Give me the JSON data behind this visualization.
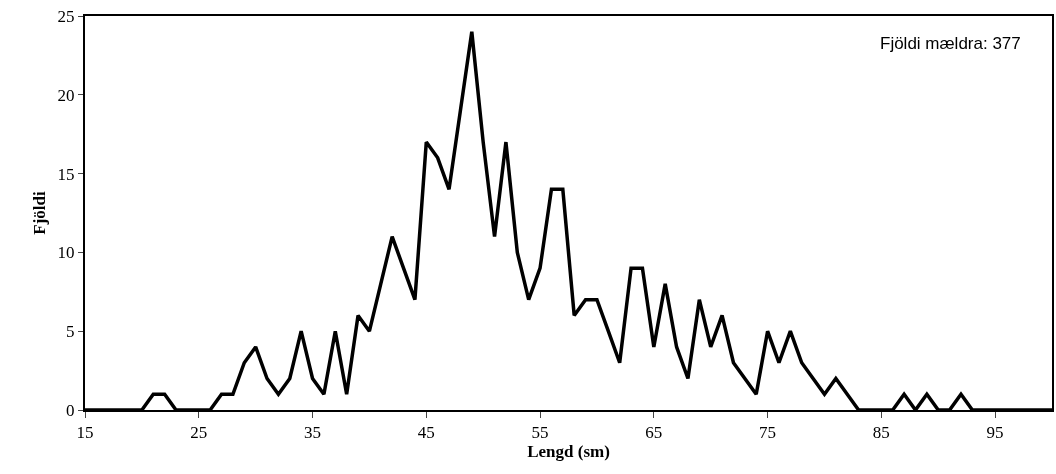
{
  "chart_data": {
    "type": "line",
    "xlabel": "Lengd (sm)",
    "ylabel": "Fjöldi",
    "annotations": [
      "Fjöldi mældra: 377"
    ],
    "x": [
      15,
      16,
      17,
      18,
      19,
      20,
      21,
      22,
      23,
      24,
      25,
      26,
      27,
      28,
      29,
      30,
      31,
      32,
      33,
      34,
      35,
      36,
      37,
      38,
      39,
      40,
      41,
      42,
      43,
      44,
      45,
      46,
      47,
      48,
      49,
      50,
      51,
      52,
      53,
      54,
      55,
      56,
      57,
      58,
      59,
      60,
      61,
      62,
      63,
      64,
      65,
      66,
      67,
      68,
      69,
      70,
      71,
      72,
      73,
      74,
      75,
      76,
      77,
      78,
      79,
      80,
      81,
      82,
      83,
      84,
      85,
      86,
      87,
      88,
      89,
      90,
      91,
      92,
      93,
      94,
      95,
      96,
      97,
      98,
      99,
      100
    ],
    "series": [
      {
        "color": "#000000",
        "values": [
          0,
          0,
          0,
          0,
          0,
          0,
          1,
          1,
          0,
          0,
          0,
          0,
          1,
          1,
          3,
          4,
          2,
          1,
          2,
          5,
          2,
          1,
          5,
          1,
          6,
          5,
          8,
          11,
          9,
          7,
          17,
          16,
          14,
          19,
          24,
          17,
          11,
          17,
          10,
          7,
          9,
          14,
          14,
          6,
          7,
          7,
          5,
          3,
          9,
          9,
          4,
          8,
          4,
          2,
          7,
          4,
          6,
          3,
          2,
          1,
          5,
          3,
          5,
          3,
          2,
          1,
          2,
          1,
          0,
          0,
          0,
          0,
          1,
          0,
          1,
          0,
          0,
          1,
          0,
          0,
          0,
          0,
          0,
          0,
          0,
          0
        ]
      }
    ],
    "xlim": [
      15,
      100
    ],
    "xticks": [
      15,
      25,
      35,
      45,
      55,
      65,
      75,
      85,
      95
    ],
    "ylim": [
      0,
      25
    ],
    "yticks": [
      0,
      5,
      10,
      15,
      20,
      25
    ],
    "marker": "none",
    "line_style": "solid"
  }
}
